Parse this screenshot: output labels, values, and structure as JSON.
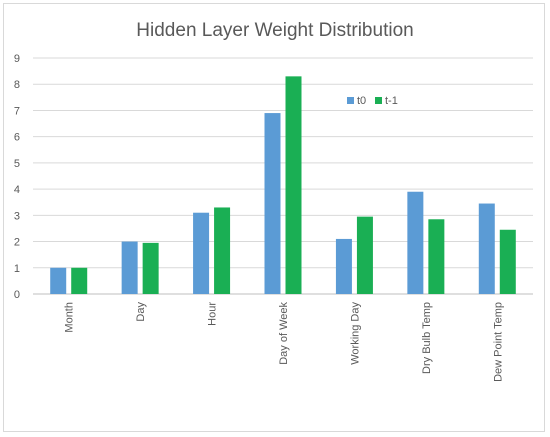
{
  "chart_data": {
    "type": "bar",
    "title": "Hidden Layer Weight Distribution",
    "xlabel": "",
    "ylabel": "",
    "categories": [
      "Month",
      "Day",
      "Hour",
      "Day of Week",
      "Working Day",
      "Dry Bulb Temp",
      "Dew Point Temp"
    ],
    "series": [
      {
        "name": "t0",
        "color": "#5b9bd5",
        "values": [
          1.0,
          2.0,
          3.1,
          6.9,
          2.1,
          3.9,
          3.45
        ]
      },
      {
        "name": "t-1",
        "color": "#1aaf54",
        "values": [
          1.0,
          1.95,
          3.3,
          8.3,
          2.95,
          2.85,
          2.45
        ]
      }
    ],
    "ylim": [
      0,
      9
    ],
    "yticks": [
      "0",
      "1",
      "2",
      "3",
      "4",
      "5",
      "6",
      "7",
      "8",
      "9"
    ],
    "grid": "horizontal",
    "legend_position": "top-right"
  }
}
